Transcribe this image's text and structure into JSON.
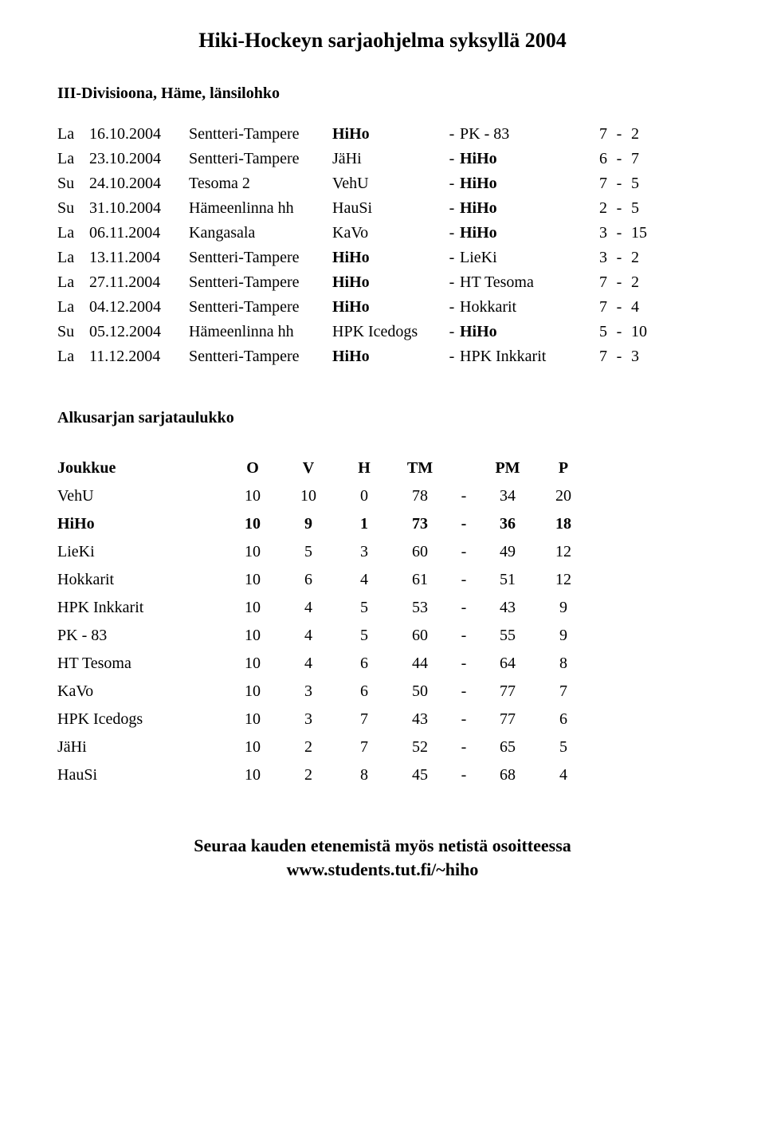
{
  "title": "Hiki-Hockeyn sarjaohjelma syksyllä 2004",
  "division": "III-Divisioona, Häme, länsilohko",
  "highlight_team": "HiHo",
  "schedule": [
    {
      "day": "La",
      "date": "16.10.2004",
      "venue": "Sentteri-Tampere",
      "home": "HiHo",
      "away": "PK - 83",
      "s1": "7",
      "s2": "2"
    },
    {
      "day": "La",
      "date": "23.10.2004",
      "venue": "Sentteri-Tampere",
      "home": "JäHi",
      "away": "HiHo",
      "s1": "6",
      "s2": "7"
    },
    {
      "day": "Su",
      "date": "24.10.2004",
      "venue": "Tesoma 2",
      "home": "VehU",
      "away": "HiHo",
      "s1": "7",
      "s2": "5"
    },
    {
      "day": "Su",
      "date": "31.10.2004",
      "venue": "Hämeenlinna hh",
      "home": "HauSi",
      "away": "HiHo",
      "s1": "2",
      "s2": "5"
    },
    {
      "day": "La",
      "date": "06.11.2004",
      "venue": "Kangasala",
      "home": "KaVo",
      "away": "HiHo",
      "s1": "3",
      "s2": "15"
    },
    {
      "day": "La",
      "date": "13.11.2004",
      "venue": "Sentteri-Tampere",
      "home": "HiHo",
      "away": "LieKi",
      "s1": "3",
      "s2": "2"
    },
    {
      "day": "La",
      "date": "27.11.2004",
      "venue": "Sentteri-Tampere",
      "home": "HiHo",
      "away": "HT Tesoma",
      "s1": "7",
      "s2": "2"
    },
    {
      "day": "La",
      "date": "04.12.2004",
      "venue": "Sentteri-Tampere",
      "home": "HiHo",
      "away": "Hokkarit",
      "s1": "7",
      "s2": "4"
    },
    {
      "day": "Su",
      "date": "05.12.2004",
      "venue": "Hämeenlinna hh",
      "home": "HPK Icedogs",
      "away": "HiHo",
      "s1": "5",
      "s2": "10"
    },
    {
      "day": "La",
      "date": "11.12.2004",
      "venue": "Sentteri-Tampere",
      "home": "HiHo",
      "away": "HPK Inkkarit",
      "s1": "7",
      "s2": "3"
    }
  ],
  "standings_title": "Alkusarjan sarjataulukko",
  "standings_header": {
    "team": "Joukkue",
    "o": "O",
    "v": "V",
    "h": "H",
    "tm": "TM",
    "pm": "PM",
    "p": "P"
  },
  "standings": [
    {
      "team": "VehU",
      "o": "10",
      "v": "10",
      "h": "0",
      "tm": "78",
      "pm": "34",
      "p": "20"
    },
    {
      "team": "HiHo",
      "o": "10",
      "v": "9",
      "h": "1",
      "tm": "73",
      "pm": "36",
      "p": "18"
    },
    {
      "team": "LieKi",
      "o": "10",
      "v": "5",
      "h": "3",
      "tm": "60",
      "pm": "49",
      "p": "12"
    },
    {
      "team": "Hokkarit",
      "o": "10",
      "v": "6",
      "h": "4",
      "tm": "61",
      "pm": "51",
      "p": "12"
    },
    {
      "team": "HPK Inkkarit",
      "o": "10",
      "v": "4",
      "h": "5",
      "tm": "53",
      "pm": "43",
      "p": "9"
    },
    {
      "team": "PK - 83",
      "o": "10",
      "v": "4",
      "h": "5",
      "tm": "60",
      "pm": "55",
      "p": "9"
    },
    {
      "team": "HT Tesoma",
      "o": "10",
      "v": "4",
      "h": "6",
      "tm": "44",
      "pm": "64",
      "p": "8"
    },
    {
      "team": "KaVo",
      "o": "10",
      "v": "3",
      "h": "6",
      "tm": "50",
      "pm": "77",
      "p": "7"
    },
    {
      "team": "HPK Icedogs",
      "o": "10",
      "v": "3",
      "h": "7",
      "tm": "43",
      "pm": "77",
      "p": "6"
    },
    {
      "team": "JäHi",
      "o": "10",
      "v": "2",
      "h": "7",
      "tm": "52",
      "pm": "65",
      "p": "5"
    },
    {
      "team": "HauSi",
      "o": "10",
      "v": "2",
      "h": "8",
      "tm": "45",
      "pm": "68",
      "p": "4"
    }
  ],
  "footer_line1": "Seuraa kauden etenemistä myös netistä osoitteessa",
  "footer_line2": "www.students.tut.fi/~hiho",
  "dash": "-"
}
